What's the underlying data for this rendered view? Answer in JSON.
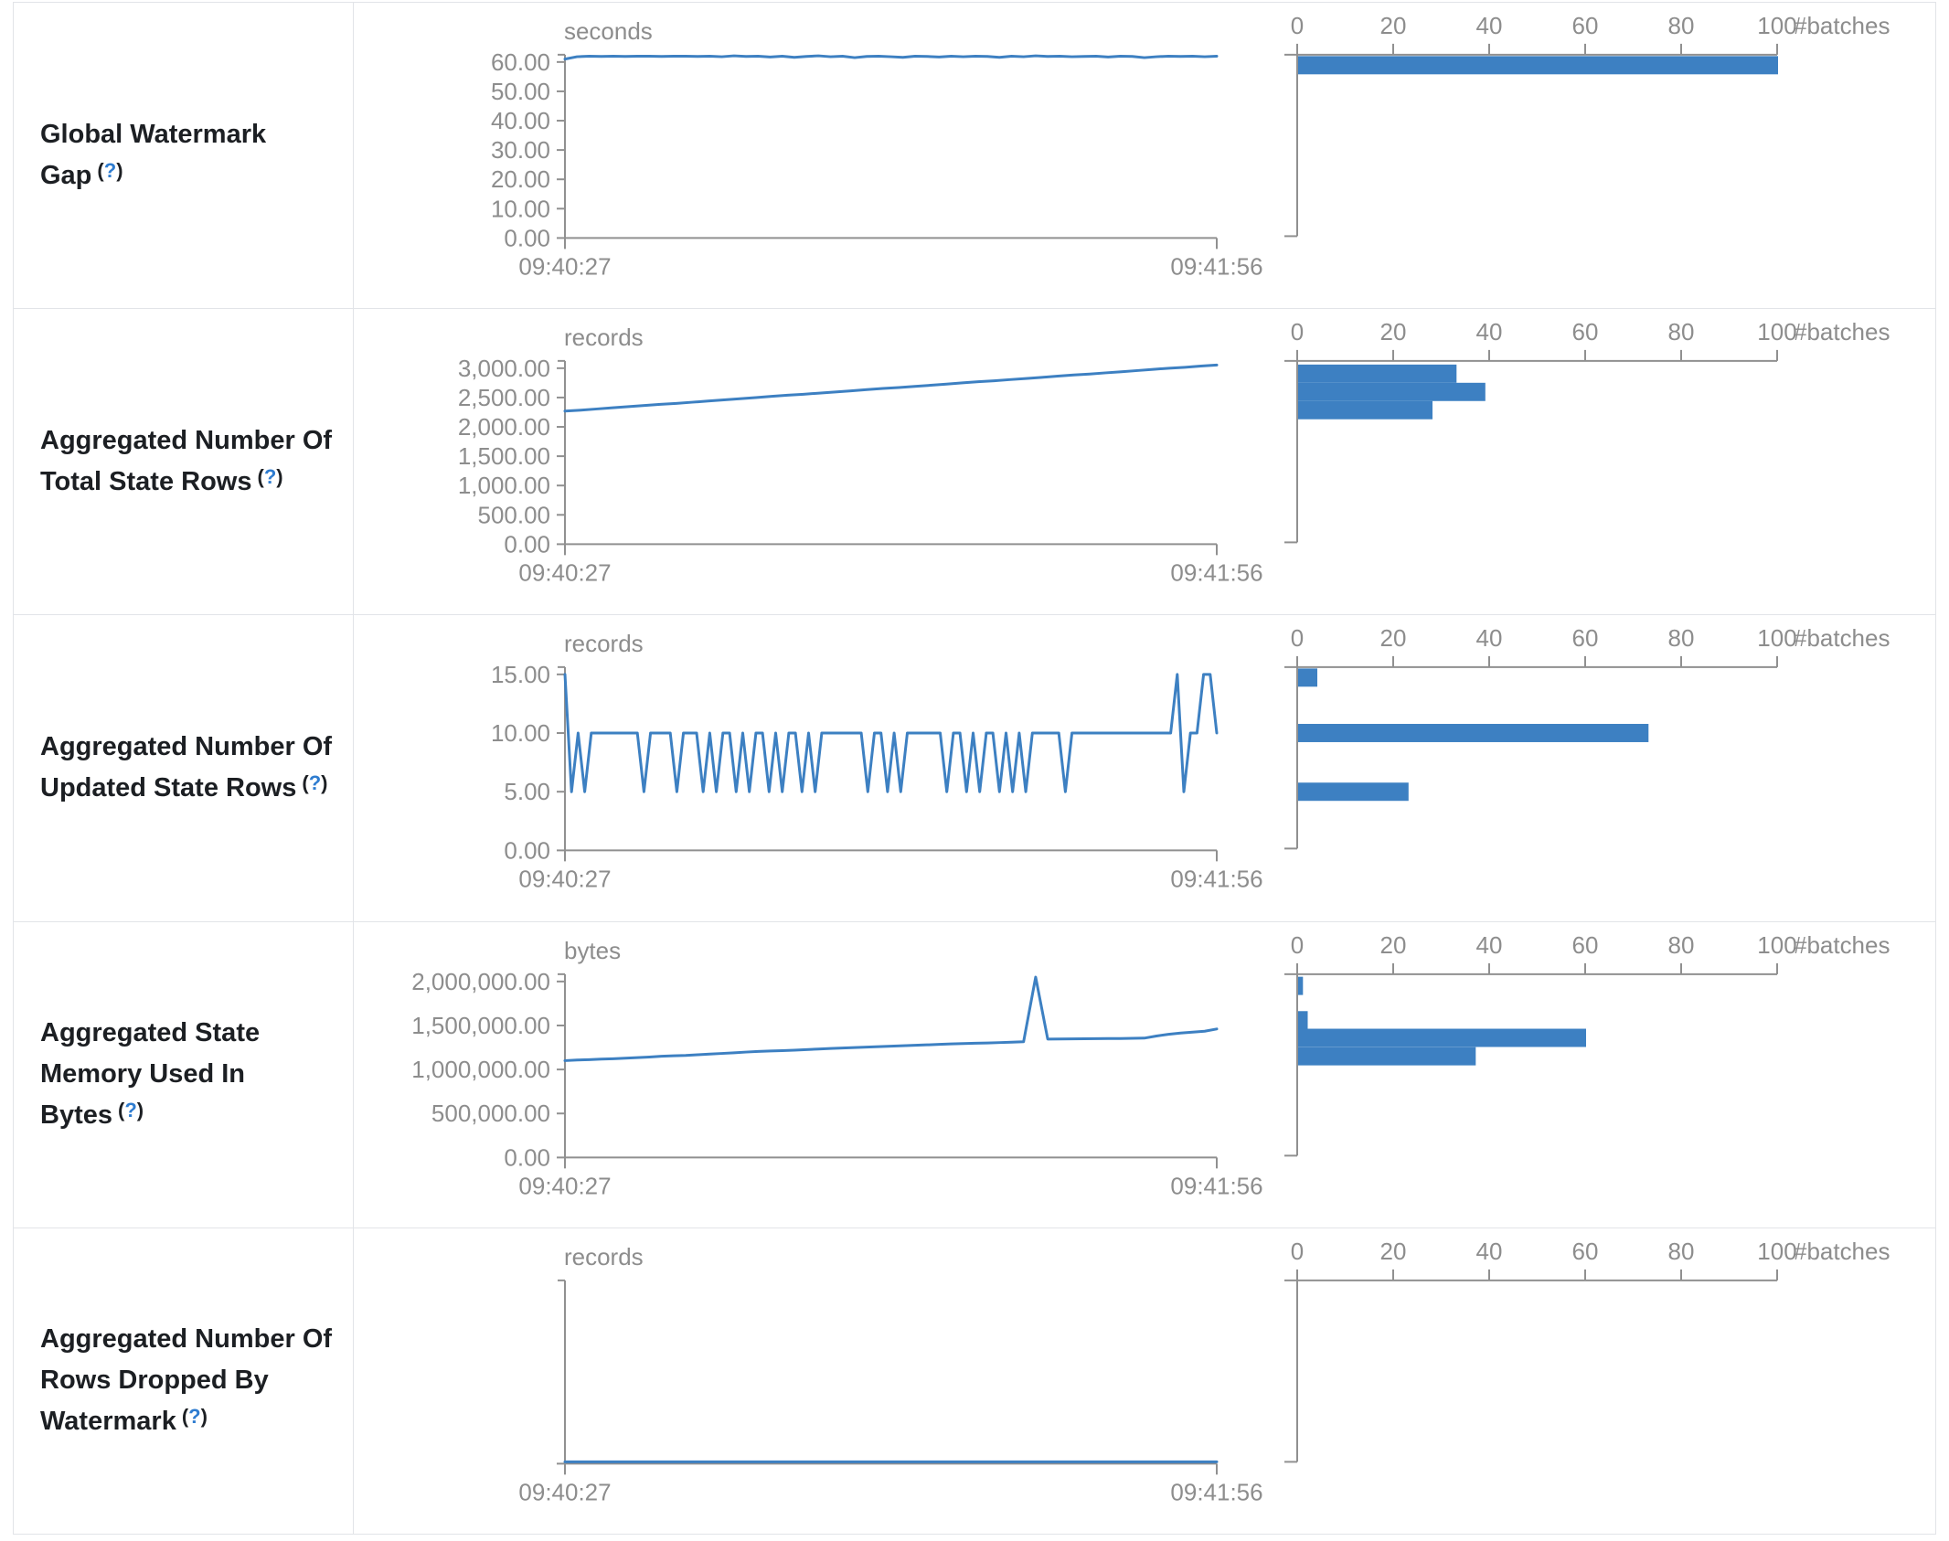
{
  "page": {
    "accent_blue": "#3d80c2",
    "axis_gray": "#909090",
    "tick_text_gray": "#8d8d8d",
    "label_dark": "#1c1f23",
    "help_blue": "#2e7cd0",
    "border_gray": "#e2e4e8"
  },
  "help": {
    "open": "(",
    "q": "?",
    "close": ")"
  },
  "time_axis": {
    "start": "09:40:27",
    "end": "09:41:56"
  },
  "histogram_axis": {
    "ticks": [
      "0",
      "20",
      "40",
      "60",
      "80",
      "100"
    ],
    "tick_values": [
      0,
      20,
      40,
      60,
      80,
      100
    ],
    "label": "#batches",
    "max": 100
  },
  "chart_data": [
    {
      "type": "line+bar-histogram",
      "label": "Global Watermark Gap",
      "unit": "seconds",
      "x_start": "09:40:27",
      "x_end": "09:41:56",
      "y_tick_max": 60,
      "y_ticks": [
        {
          "v": 0,
          "t": "0.00"
        },
        {
          "v": 10,
          "t": "10.00"
        },
        {
          "v": 20,
          "t": "20.00"
        },
        {
          "v": 30,
          "t": "30.00"
        },
        {
          "v": 40,
          "t": "40.00"
        },
        {
          "v": 50,
          "t": "50.00"
        },
        {
          "v": 60,
          "t": "60.00"
        }
      ],
      "series": [
        61.0,
        61.8,
        62.0,
        61.9,
        62.0,
        61.9,
        62.0,
        62.0,
        61.9,
        62.0,
        62.0,
        61.9,
        62.0,
        61.8,
        62.1,
        61.9,
        62.0,
        61.7,
        62.0,
        61.6,
        61.9,
        62.1,
        61.8,
        62.0,
        61.5,
        61.9,
        62.0,
        61.8,
        61.6,
        62.0,
        61.9,
        61.7,
        62.0,
        61.8,
        62.0,
        61.9,
        61.6,
        62.0,
        61.8,
        62.1,
        61.9,
        62.0,
        61.8,
        61.9,
        62.0,
        61.7,
        62.0,
        61.9,
        61.5,
        61.8,
        62.0,
        61.9,
        62.0,
        61.8,
        62.0
      ],
      "histogram_bins": [
        {
          "center": 61.5,
          "count": 100
        }
      ]
    },
    {
      "type": "line+bar-histogram",
      "label": "Aggregated Number Of Total State Rows",
      "unit": "records",
      "x_start": "09:40:27",
      "x_end": "09:41:56",
      "y_tick_max": 3000,
      "y_ticks": [
        {
          "v": 0,
          "t": "0.00"
        },
        {
          "v": 500,
          "t": "500.00"
        },
        {
          "v": 1000,
          "t": "1,000.00"
        },
        {
          "v": 1500,
          "t": "1,500.00"
        },
        {
          "v": 2000,
          "t": "2,000.00"
        },
        {
          "v": 2500,
          "t": "2,500.00"
        },
        {
          "v": 3000,
          "t": "3,000.00"
        }
      ],
      "series": [
        2270,
        2285,
        2305,
        2325,
        2345,
        2365,
        2385,
        2400,
        2420,
        2440,
        2460,
        2480,
        2500,
        2520,
        2540,
        2555,
        2575,
        2595,
        2615,
        2635,
        2655,
        2670,
        2690,
        2710,
        2730,
        2750,
        2770,
        2785,
        2805,
        2825,
        2845,
        2865,
        2885,
        2900,
        2920,
        2940,
        2960,
        2980,
        3000,
        3015,
        3035,
        3055
      ],
      "histogram_bins": [
        {
          "center": 2907,
          "count": 33
        },
        {
          "center": 2596,
          "count": 39
        },
        {
          "center": 2285,
          "count": 28
        }
      ]
    },
    {
      "type": "line+bar-histogram",
      "label": "Aggregated Number Of Updated State Rows",
      "unit": "records",
      "x_start": "09:40:27",
      "x_end": "09:41:56",
      "y_tick_max": 15,
      "y_ticks": [
        {
          "v": 0,
          "t": "0.00"
        },
        {
          "v": 5,
          "t": "5.00"
        },
        {
          "v": 10,
          "t": "10.00"
        },
        {
          "v": 15,
          "t": "15.00"
        }
      ],
      "series": [
        15,
        5,
        10,
        5,
        10,
        10,
        10,
        10,
        10,
        10,
        10,
        10,
        5,
        10,
        10,
        10,
        10,
        5,
        10,
        10,
        10,
        5,
        10,
        5,
        10,
        10,
        5,
        10,
        5,
        10,
        10,
        5,
        10,
        5,
        10,
        10,
        5,
        10,
        5,
        10,
        10,
        10,
        10,
        10,
        10,
        10,
        5,
        10,
        10,
        5,
        10,
        5,
        10,
        10,
        10,
        10,
        10,
        10,
        5,
        10,
        10,
        5,
        10,
        5,
        10,
        10,
        5,
        10,
        5,
        10,
        5,
        10,
        10,
        10,
        10,
        10,
        5,
        10,
        10,
        10,
        10,
        10,
        10,
        10,
        10,
        10,
        10,
        10,
        10,
        10,
        10,
        10,
        10,
        15,
        5,
        10,
        10,
        15,
        15,
        10
      ],
      "histogram_bins": [
        {
          "center": 15,
          "count": 4
        },
        {
          "center": 10,
          "count": 73
        },
        {
          "center": 5,
          "count": 23
        }
      ]
    },
    {
      "type": "line+bar-histogram",
      "label": "Aggregated State Memory Used In Bytes",
      "unit": "bytes",
      "x_start": "09:40:27",
      "x_end": "09:41:56",
      "y_tick_max": 2000000,
      "y_ticks": [
        {
          "v": 0,
          "t": "0.00"
        },
        {
          "v": 500000,
          "t": "500,000.00"
        },
        {
          "v": 1000000,
          "t": "1,000,000.00"
        },
        {
          "v": 1500000,
          "t": "1,500,000.00"
        },
        {
          "v": 2000000,
          "t": "2,000,000.00"
        }
      ],
      "series": [
        1100000,
        1108000,
        1112000,
        1118000,
        1122000,
        1128000,
        1135000,
        1142000,
        1150000,
        1155000,
        1160000,
        1168000,
        1175000,
        1182000,
        1190000,
        1198000,
        1205000,
        1210000,
        1215000,
        1220000,
        1226000,
        1232000,
        1238000,
        1244000,
        1250000,
        1255000,
        1260000,
        1265000,
        1270000,
        1275000,
        1280000,
        1285000,
        1290000,
        1294000,
        1298000,
        1302000,
        1306000,
        1310000,
        1315000,
        2050000,
        1345000,
        1347000,
        1348000,
        1349000,
        1350000,
        1351000,
        1352000,
        1354000,
        1356000,
        1380000,
        1400000,
        1415000,
        1425000,
        1435000,
        1460000
      ],
      "histogram_bins": [
        {
          "center": 1950000,
          "count": 1
        },
        {
          "center": 1560000,
          "count": 2
        },
        {
          "center": 1360000,
          "count": 60
        },
        {
          "center": 1150000,
          "count": 37
        }
      ]
    },
    {
      "type": "line+bar-histogram",
      "label": "Aggregated Number Of Rows Dropped By Watermark",
      "unit": "records",
      "x_start": "09:40:27",
      "x_end": "09:41:56",
      "y_tick_max": 60,
      "y_ticks": [],
      "series": [
        0,
        0,
        0,
        0,
        0,
        0,
        0,
        0,
        0,
        0,
        0,
        0,
        0,
        0,
        0,
        0,
        0,
        0,
        0,
        0
      ],
      "histogram_bins": []
    }
  ]
}
